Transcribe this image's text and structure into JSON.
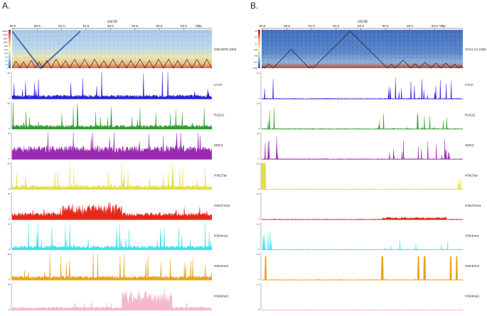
{
  "panels": [
    {
      "letter": "A.",
      "chrom": "chr19",
      "ticks": [
        "50.0",
        "50.5",
        "51.0",
        "51.5",
        "52.0",
        "52.5",
        "53.0",
        "53.5"
      ],
      "unit": "Mbp",
      "hic_label": "GM12878 10Kb",
      "colorbar_ticks": [
        "1000.0",
        "500.0",
        "200.0",
        "100.0",
        "50.0",
        "20.0",
        "10.0",
        "5.0",
        "2.0",
        "1.0",
        "0"
      ],
      "tracks": [
        {
          "name": "CTCF",
          "ymax": "90",
          "ymin": "0",
          "color": "#2b1fd6"
        },
        {
          "name": "RAD21",
          "ymax": "60",
          "ymin": "0",
          "color": "#2e9e2e"
        },
        {
          "name": "SMC3",
          "ymax": "10",
          "ymin": "0",
          "color": "#9a2ab0"
        },
        {
          "name": "H3K27ac",
          "ymax": "40",
          "ymin": "0",
          "color": "#e6dc4a"
        },
        {
          "name": "H3K27me3",
          "ymax": "10",
          "ymin": "0",
          "color": "#e8271c"
        },
        {
          "name": "H3K4me1",
          "ymax": "10",
          "ymin": "0",
          "color": "#3fe3ef"
        },
        {
          "name": "H3K4me3",
          "ymax": "20",
          "ymin": "0",
          "color": "#e8a21c"
        },
        {
          "name": "H3K9me3",
          "ymax": "10",
          "ymin": "0",
          "color": "#f3b8c9"
        }
      ]
    },
    {
      "letter": "B.",
      "chrom": "chr18",
      "ticks": [
        "50.0",
        "50.5",
        "51.0",
        "51.5",
        "52.0",
        "52.5",
        "53.0",
        "53.5"
      ],
      "unit": "Mbp",
      "hic_label": "CH12.LX 10Kb",
      "colorbar_ticks": [
        "0.5",
        "0.2",
        "0.1",
        "0.05",
        "0.02",
        "0.01",
        "0.005"
      ],
      "tracks": [
        {
          "name": "CTCF",
          "ymax": "1.0",
          "ymin": "0",
          "color": "#2b1fd6"
        },
        {
          "name": "RAD21",
          "ymax": "1.0",
          "ymin": "0",
          "color": "#2e9e2e"
        },
        {
          "name": "SMC3",
          "ymax": "1.0",
          "ymin": "0",
          "color": "#9a2ab0"
        },
        {
          "name": "H3K27ac",
          "ymax": "1.0",
          "ymin": "0",
          "color": "#e6dc4a"
        },
        {
          "name": "H3K27me3",
          "ymax": "1.0",
          "ymin": "0",
          "color": "#e8271c"
        },
        {
          "name": "H3K4me1",
          "ymax": "1.0",
          "ymin": "0",
          "color": "#3fe3ef"
        },
        {
          "name": "H3K4me3",
          "ymax": "1.0",
          "ymin": "0",
          "color": "#e8a21c"
        },
        {
          "name": "H3K9me3",
          "ymax": "1.0",
          "ymin": "0",
          "color": "#f3b8c9"
        }
      ]
    }
  ]
}
